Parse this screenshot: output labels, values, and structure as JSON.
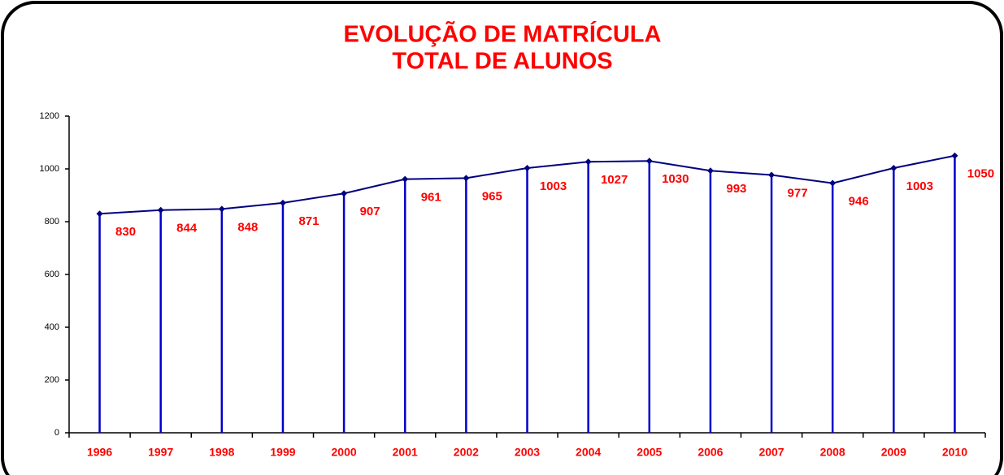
{
  "chart_data": {
    "type": "line",
    "title": "EVOLUÇÃO DE MATRÍCULA",
    "subtitle": "TOTAL DE ALUNOS",
    "categories": [
      "1996",
      "1997",
      "1998",
      "1999",
      "2000",
      "2001",
      "2002",
      "2003",
      "2004",
      "2005",
      "2006",
      "2007",
      "2008",
      "2009",
      "2010"
    ],
    "values": [
      830,
      844,
      848,
      871,
      907,
      961,
      965,
      1003,
      1027,
      1030,
      993,
      977,
      946,
      1003,
      1050
    ],
    "color": "#000080",
    "drop_line_color": "#0000cc",
    "label_color": "#ff0000",
    "ylim": [
      0,
      1200
    ],
    "yticks": [
      0,
      200,
      400,
      600,
      800,
      1000,
      1200
    ]
  }
}
